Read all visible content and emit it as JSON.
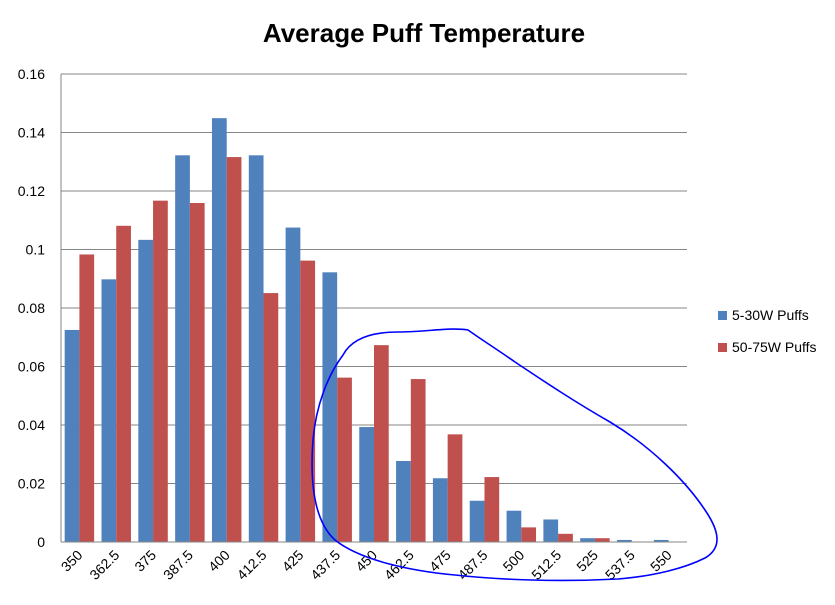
{
  "chart_data": {
    "type": "bar",
    "title": "Average Puff Temperature",
    "xlabel": "",
    "ylabel": "",
    "ylim": [
      0,
      0.16
    ],
    "yticks": [
      "0",
      "0.02",
      "0.04",
      "0.06",
      "0.08",
      "0.1",
      "0.12",
      "0.14",
      "0.16"
    ],
    "categories": [
      "350",
      "362.5",
      "375",
      "387.5",
      "400",
      "412.5",
      "425",
      "437.5",
      "450",
      "462.5",
      "475",
      "487.5",
      "500",
      "512.5",
      "525",
      "537.5",
      "550"
    ],
    "series": [
      {
        "name": "5-30W Puffs",
        "color": "#4F81BD",
        "values": [
          0.0725,
          0.0898,
          0.1033,
          0.1322,
          0.1449,
          0.1322,
          0.1075,
          0.0922,
          0.0393,
          0.0277,
          0.0218,
          0.0141,
          0.0107,
          0.0077,
          0.0013,
          0.0007,
          0.0007
        ]
      },
      {
        "name": "50-75W Puffs",
        "color": "#C0504D",
        "values": [
          0.0983,
          0.1081,
          0.1167,
          0.1159,
          0.1316,
          0.0851,
          0.0962,
          0.0562,
          0.0673,
          0.0557,
          0.0368,
          0.0222,
          0.005,
          0.0028,
          0.0013,
          0,
          0
        ]
      }
    ],
    "grid": true,
    "legend_position": "right",
    "annotation": {
      "type": "freehand-loop",
      "color": "#0000FF"
    }
  }
}
